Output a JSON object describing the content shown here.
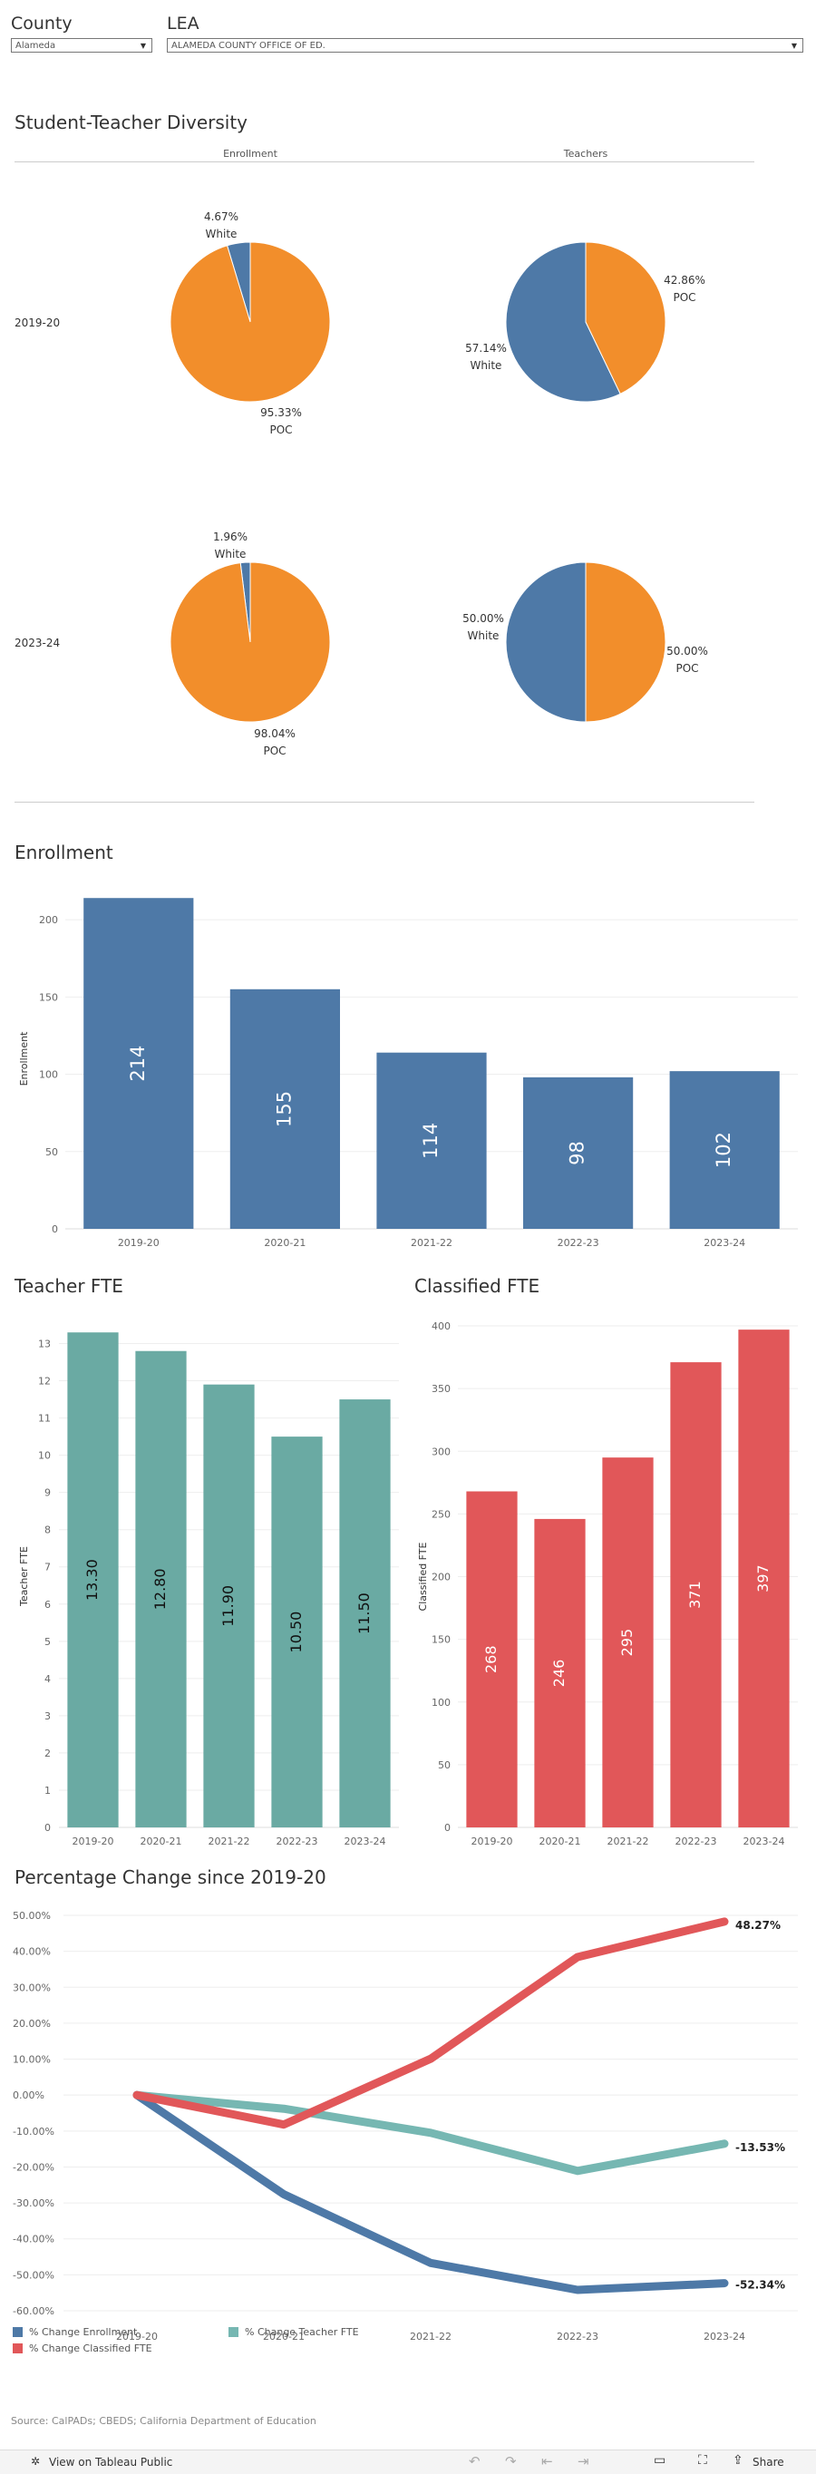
{
  "filters": {
    "county": {
      "label": "County",
      "value": "Alameda"
    },
    "lea": {
      "label": "LEA",
      "value": "ALAMEDA COUNTY OFFICE OF ED."
    }
  },
  "diversity": {
    "title": "Student-Teacher Diversity",
    "col_enrollment": "Enrollment",
    "col_teachers": "Teachers",
    "rows": [
      {
        "year": "2019-20",
        "enroll_white_pct": "4.67%",
        "enroll_white": "White",
        "enroll_poc_pct": "95.33%",
        "enroll_poc": "POC",
        "teach_white_pct": "57.14%",
        "teach_white": "White",
        "teach_poc_pct": "42.86%",
        "teach_poc": "POC"
      },
      {
        "year": "2023-24",
        "enroll_white_pct": "1.96%",
        "enroll_white": "White",
        "enroll_poc_pct": "98.04%",
        "enroll_poc": "POC",
        "teach_white_pct": "50.00%",
        "teach_white": "White",
        "teach_poc_pct": "50.00%",
        "teach_poc": "POC"
      }
    ]
  },
  "enrollment_title": "Enrollment",
  "teacher_title": "Teacher FTE",
  "classified_title": "Classified FTE",
  "pct_title": "Percentage Change since 2019-20",
  "source": "Source: CalPADs; CBEDS; California Department of Education",
  "toolbar": {
    "view_label": "View on Tableau Public",
    "share_label": "Share"
  },
  "colors": {
    "white": "#4e79a7",
    "poc": "#f28e2b",
    "teacher": "#6aaaa3",
    "classified": "#e15759",
    "enroll": "#4e79a7",
    "teacher_line": "#76b7b2"
  },
  "chart_data": [
    {
      "type": "pie",
      "title": "Enrollment 2019-20",
      "labels": [
        "White",
        "POC"
      ],
      "values": [
        4.67,
        95.33
      ]
    },
    {
      "type": "pie",
      "title": "Teachers 2019-20",
      "labels": [
        "White",
        "POC"
      ],
      "values": [
        57.14,
        42.86
      ]
    },
    {
      "type": "pie",
      "title": "Enrollment 2023-24",
      "labels": [
        "White",
        "POC"
      ],
      "values": [
        1.96,
        98.04
      ]
    },
    {
      "type": "pie",
      "title": "Teachers 2023-24",
      "labels": [
        "White",
        "POC"
      ],
      "values": [
        50.0,
        50.0
      ]
    },
    {
      "type": "bar",
      "title": "Enrollment",
      "categories": [
        "2019-20",
        "2020-21",
        "2021-22",
        "2022-23",
        "2023-24"
      ],
      "values": [
        214,
        155,
        114,
        98,
        102
      ],
      "ylabel": "Enrollment",
      "ylim": [
        0,
        220
      ],
      "yticks": [
        0,
        50,
        100,
        150,
        200
      ],
      "grid": true
    },
    {
      "type": "bar",
      "title": "Teacher FTE",
      "categories": [
        "2019-20",
        "2020-21",
        "2021-22",
        "2022-23",
        "2023-24"
      ],
      "values": [
        13.3,
        12.8,
        11.9,
        10.5,
        11.5
      ],
      "value_labels": [
        "13.30",
        "12.80",
        "11.90",
        "10.50",
        "11.50"
      ],
      "ylabel": "Teacher FTE",
      "ylim": [
        0,
        13.5
      ],
      "yticks": [
        0,
        1,
        2,
        3,
        4,
        5,
        6,
        7,
        8,
        9,
        10,
        11,
        12,
        13
      ],
      "grid": true
    },
    {
      "type": "bar",
      "title": "Classified FTE",
      "categories": [
        "2019-20",
        "2020-21",
        "2021-22",
        "2022-23",
        "2023-24"
      ],
      "values": [
        268,
        246,
        295,
        371,
        397
      ],
      "ylabel": "Classified FTE",
      "ylim": [
        0,
        400
      ],
      "yticks": [
        0,
        50,
        100,
        150,
        200,
        250,
        300,
        350,
        400
      ],
      "grid": true
    },
    {
      "type": "line",
      "title": "Percentage Change since 2019-20",
      "categories": [
        "2019-20",
        "2020-21",
        "2021-22",
        "2022-23",
        "2023-24"
      ],
      "ylim": [
        -60,
        50
      ],
      "yticks": [
        "50.00%",
        "40.00%",
        "30.00%",
        "20.00%",
        "10.00%",
        "0.00%",
        "-10.00%",
        "-20.00%",
        "-30.00%",
        "-40.00%",
        "-50.00%",
        "-60.00%"
      ],
      "series": [
        {
          "name": "% Change Enrollment",
          "values": [
            0,
            -27.6,
            -46.7,
            -54.2,
            -52.34
          ],
          "end_label": "-52.34%"
        },
        {
          "name": "% Change Teacher FTE",
          "values": [
            0,
            -3.8,
            -10.5,
            -21.1,
            -13.53
          ],
          "end_label": "-13.53%"
        },
        {
          "name": "% Change Classified FTE",
          "values": [
            0,
            -8.2,
            10.1,
            38.4,
            48.27
          ],
          "end_label": "48.27%"
        }
      ],
      "legend_position": "bottom",
      "grid": true
    }
  ]
}
